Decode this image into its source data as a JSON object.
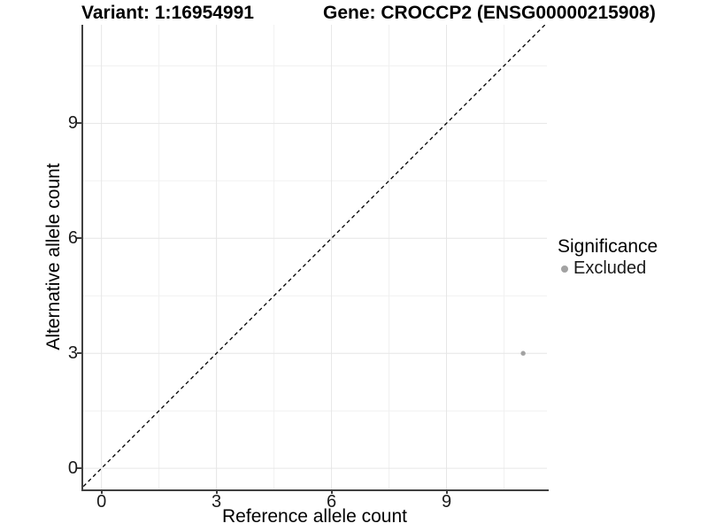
{
  "page": {
    "background": "#ffffff"
  },
  "chart_data": {
    "type": "scatter",
    "title_left": "Variant: 1:16954991",
    "title_right": "Gene: CROCCP2 (ENSG00000215908)",
    "xlabel": "Reference allele count",
    "ylabel": "Alternative allele count",
    "xlim": [
      -0.5,
      11.62
    ],
    "ylim": [
      -0.55,
      11.57
    ],
    "x_major_ticks": [
      0,
      3,
      6,
      9
    ],
    "y_major_ticks": [
      0,
      3,
      6,
      9
    ],
    "x_minor_gridlines": [
      1.5,
      4.5,
      7.5,
      10.5
    ],
    "y_minor_gridlines": [
      1.5,
      4.5,
      7.5,
      10.5
    ],
    "grid": "major and minor gridlines, light gray on white panel",
    "reference_line": {
      "type": "identity (y = x)",
      "style": "dashed",
      "color": "#000000",
      "from": [
        -0.6,
        -0.6
      ],
      "to": [
        11.7,
        11.7
      ]
    },
    "series": [
      {
        "name": "Excluded",
        "marker": "circle",
        "color": "#a2a2a2",
        "point_radius": 2.7,
        "points": [
          {
            "x": 11,
            "y": 3
          }
        ]
      }
    ],
    "legend": {
      "title": "Significance",
      "position": "right",
      "items": [
        {
          "label": "Excluded",
          "color": "#a2a2a2"
        }
      ]
    }
  },
  "colors": {
    "axis_line": "#404040",
    "axis_text": "#1a1a1a",
    "grid_major": "#e6e6e6",
    "grid_minor": "#f1f1f1",
    "dashed_line": "#000000",
    "point": "#a2a2a2"
  }
}
